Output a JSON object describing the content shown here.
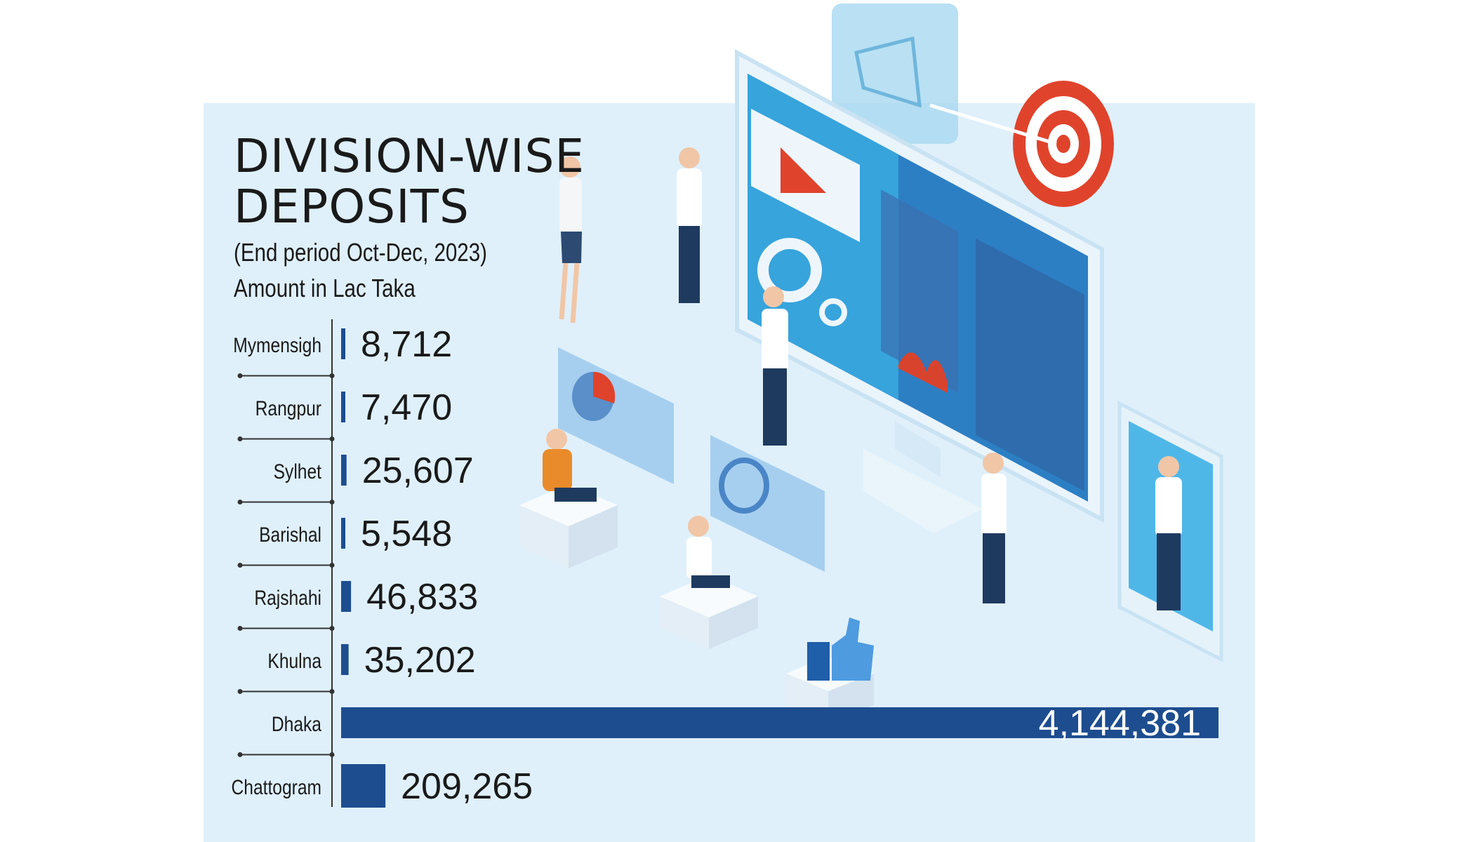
{
  "header": {
    "title_line1": "DIVISION-WISE",
    "title_line2": "DEPOSITS",
    "subtitle": "(End period Oct-Dec, 2023)",
    "unit_note": "Amount in Lac Taka"
  },
  "colors": {
    "panel_bg": "#dff0fb",
    "bar": "#1d4d8f",
    "text": "#1a1a1a",
    "dhaka_label": "#ffffff",
    "target_red": "#e0432c"
  },
  "chart_data": {
    "type": "bar",
    "orientation": "horizontal",
    "title": "DIVISION-WISE DEPOSITS",
    "subtitle": "(End period Oct-Dec, 2023)",
    "unit": "Amount in Lac Taka",
    "categories": [
      "Mymensigh",
      "Rangpur",
      "Sylhet",
      "Barishal",
      "Rajshahi",
      "Khulna",
      "Dhaka",
      "Chattogram"
    ],
    "values": [
      8712,
      7470,
      25607,
      5548,
      46833,
      35202,
      4144381,
      209265
    ],
    "value_labels": [
      "8,712",
      "7,470",
      "25,607",
      "5,548",
      "46,833",
      "35,202",
      "4,144,381",
      "209,265"
    ],
    "legend": "none",
    "grid": false
  }
}
